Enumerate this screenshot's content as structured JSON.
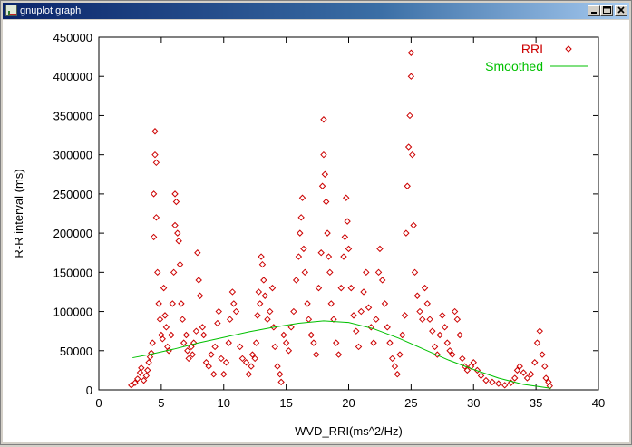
{
  "window": {
    "title": "gnuplot graph",
    "controls": {
      "minimize": "minimize",
      "maximize": "maximize",
      "close": "close"
    }
  },
  "chart_data": {
    "type": "scatter",
    "xlabel": "WVD_RRI(ms^2/Hz)",
    "ylabel": "R-R interval (ms)",
    "xlim": [
      0,
      40
    ],
    "ylim": [
      0,
      450000
    ],
    "xticks": [
      "0",
      "5",
      "10",
      "15",
      "20",
      "25",
      "30",
      "35",
      "40"
    ],
    "yticks": [
      "0",
      "50000",
      "100000",
      "150000",
      "200000",
      "250000",
      "300000",
      "350000",
      "400000",
      "450000"
    ],
    "legend_position": "top-right",
    "series": [
      {
        "name": "RRI",
        "marker": "diamond",
        "color": "#cc0000",
        "points": [
          [
            2.6,
            6000
          ],
          [
            2.9,
            9000
          ],
          [
            3.1,
            14000
          ],
          [
            3.3,
            22000
          ],
          [
            3.4,
            28000
          ],
          [
            3.6,
            12000
          ],
          [
            3.8,
            18000
          ],
          [
            3.9,
            25000
          ],
          [
            4.0,
            35000
          ],
          [
            4.1,
            42000
          ],
          [
            4.2,
            47000
          ],
          [
            4.3,
            60000
          ],
          [
            4.4,
            195000
          ],
          [
            4.4,
            250000
          ],
          [
            4.5,
            300000
          ],
          [
            4.5,
            330000
          ],
          [
            4.6,
            290000
          ],
          [
            4.6,
            220000
          ],
          [
            4.7,
            150000
          ],
          [
            4.8,
            110000
          ],
          [
            4.9,
            90000
          ],
          [
            5.0,
            70000
          ],
          [
            5.1,
            65000
          ],
          [
            5.2,
            130000
          ],
          [
            5.3,
            95000
          ],
          [
            5.4,
            80000
          ],
          [
            5.5,
            55000
          ],
          [
            5.6,
            50000
          ],
          [
            5.8,
            70000
          ],
          [
            5.9,
            110000
          ],
          [
            6.0,
            150000
          ],
          [
            6.1,
            210000
          ],
          [
            6.1,
            250000
          ],
          [
            6.2,
            240000
          ],
          [
            6.3,
            200000
          ],
          [
            6.4,
            190000
          ],
          [
            6.5,
            160000
          ],
          [
            6.6,
            110000
          ],
          [
            6.7,
            90000
          ],
          [
            6.8,
            60000
          ],
          [
            7.0,
            70000
          ],
          [
            7.1,
            50000
          ],
          [
            7.2,
            40000
          ],
          [
            7.4,
            55000
          ],
          [
            7.5,
            45000
          ],
          [
            7.6,
            60000
          ],
          [
            7.8,
            75000
          ],
          [
            7.9,
            175000
          ],
          [
            8.0,
            140000
          ],
          [
            8.1,
            120000
          ],
          [
            8.3,
            80000
          ],
          [
            8.4,
            70000
          ],
          [
            8.6,
            35000
          ],
          [
            8.8,
            30000
          ],
          [
            9.0,
            45000
          ],
          [
            9.2,
            20000
          ],
          [
            9.3,
            55000
          ],
          [
            9.5,
            85000
          ],
          [
            9.6,
            100000
          ],
          [
            9.8,
            40000
          ],
          [
            10.0,
            20000
          ],
          [
            10.2,
            35000
          ],
          [
            10.4,
            60000
          ],
          [
            10.5,
            90000
          ],
          [
            10.7,
            125000
          ],
          [
            10.8,
            110000
          ],
          [
            11.0,
            100000
          ],
          [
            11.3,
            55000
          ],
          [
            11.5,
            40000
          ],
          [
            11.8,
            35000
          ],
          [
            12.0,
            20000
          ],
          [
            12.2,
            30000
          ],
          [
            12.3,
            45000
          ],
          [
            12.5,
            40000
          ],
          [
            12.6,
            60000
          ],
          [
            12.7,
            95000
          ],
          [
            12.8,
            125000
          ],
          [
            12.9,
            110000
          ],
          [
            13.0,
            170000
          ],
          [
            13.1,
            160000
          ],
          [
            13.2,
            140000
          ],
          [
            13.3,
            120000
          ],
          [
            13.5,
            90000
          ],
          [
            13.7,
            100000
          ],
          [
            13.9,
            130000
          ],
          [
            14.0,
            80000
          ],
          [
            14.1,
            55000
          ],
          [
            14.3,
            30000
          ],
          [
            14.5,
            20000
          ],
          [
            14.6,
            10000
          ],
          [
            14.8,
            70000
          ],
          [
            15.0,
            60000
          ],
          [
            15.2,
            50000
          ],
          [
            15.4,
            80000
          ],
          [
            15.6,
            100000
          ],
          [
            15.8,
            140000
          ],
          [
            16.0,
            170000
          ],
          [
            16.1,
            200000
          ],
          [
            16.2,
            220000
          ],
          [
            16.3,
            245000
          ],
          [
            16.4,
            180000
          ],
          [
            16.5,
            150000
          ],
          [
            16.7,
            110000
          ],
          [
            16.8,
            90000
          ],
          [
            17.0,
            70000
          ],
          [
            17.2,
            60000
          ],
          [
            17.4,
            45000
          ],
          [
            17.6,
            130000
          ],
          [
            17.8,
            175000
          ],
          [
            17.9,
            260000
          ],
          [
            18.0,
            300000
          ],
          [
            18.0,
            345000
          ],
          [
            18.1,
            275000
          ],
          [
            18.2,
            240000
          ],
          [
            18.3,
            200000
          ],
          [
            18.4,
            170000
          ],
          [
            18.5,
            150000
          ],
          [
            18.6,
            110000
          ],
          [
            18.8,
            90000
          ],
          [
            19.0,
            60000
          ],
          [
            19.2,
            45000
          ],
          [
            19.4,
            130000
          ],
          [
            19.6,
            170000
          ],
          [
            19.7,
            195000
          ],
          [
            19.8,
            245000
          ],
          [
            19.9,
            215000
          ],
          [
            20.0,
            180000
          ],
          [
            20.2,
            130000
          ],
          [
            20.4,
            95000
          ],
          [
            20.6,
            75000
          ],
          [
            20.8,
            55000
          ],
          [
            21.0,
            100000
          ],
          [
            21.2,
            125000
          ],
          [
            21.4,
            150000
          ],
          [
            21.6,
            105000
          ],
          [
            21.8,
            80000
          ],
          [
            22.0,
            60000
          ],
          [
            22.2,
            90000
          ],
          [
            22.4,
            150000
          ],
          [
            22.5,
            180000
          ],
          [
            22.7,
            140000
          ],
          [
            22.9,
            110000
          ],
          [
            23.1,
            80000
          ],
          [
            23.3,
            60000
          ],
          [
            23.5,
            40000
          ],
          [
            23.7,
            30000
          ],
          [
            23.9,
            20000
          ],
          [
            24.1,
            45000
          ],
          [
            24.3,
            70000
          ],
          [
            24.5,
            95000
          ],
          [
            24.6,
            200000
          ],
          [
            24.7,
            260000
          ],
          [
            24.8,
            310000
          ],
          [
            24.9,
            350000
          ],
          [
            25.0,
            400000
          ],
          [
            25.0,
            430000
          ],
          [
            25.1,
            300000
          ],
          [
            25.2,
            210000
          ],
          [
            25.3,
            150000
          ],
          [
            25.5,
            120000
          ],
          [
            25.7,
            100000
          ],
          [
            25.9,
            90000
          ],
          [
            26.1,
            130000
          ],
          [
            26.3,
            110000
          ],
          [
            26.5,
            90000
          ],
          [
            26.7,
            75000
          ],
          [
            26.9,
            55000
          ],
          [
            27.1,
            45000
          ],
          [
            27.3,
            70000
          ],
          [
            27.5,
            95000
          ],
          [
            27.7,
            80000
          ],
          [
            27.9,
            60000
          ],
          [
            28.1,
            50000
          ],
          [
            28.3,
            45000
          ],
          [
            28.5,
            100000
          ],
          [
            28.7,
            90000
          ],
          [
            28.9,
            70000
          ],
          [
            29.1,
            40000
          ],
          [
            29.3,
            30000
          ],
          [
            29.5,
            25000
          ],
          [
            29.8,
            30000
          ],
          [
            30.0,
            35000
          ],
          [
            30.3,
            25000
          ],
          [
            30.6,
            18000
          ],
          [
            31.0,
            12000
          ],
          [
            31.5,
            10000
          ],
          [
            32.0,
            8000
          ],
          [
            32.5,
            6000
          ],
          [
            33.0,
            9000
          ],
          [
            33.3,
            15000
          ],
          [
            33.5,
            25000
          ],
          [
            33.7,
            30000
          ],
          [
            34.0,
            22000
          ],
          [
            34.3,
            15000
          ],
          [
            34.6,
            20000
          ],
          [
            34.9,
            35000
          ],
          [
            35.1,
            60000
          ],
          [
            35.3,
            75000
          ],
          [
            35.5,
            45000
          ],
          [
            35.7,
            30000
          ],
          [
            35.8,
            15000
          ],
          [
            36.0,
            10000
          ],
          [
            36.1,
            5000
          ]
        ]
      },
      {
        "name": "Smoothed",
        "color": "#00c000",
        "points": [
          [
            2.7,
            41000
          ],
          [
            4,
            45000
          ],
          [
            6,
            52000
          ],
          [
            8,
            60000
          ],
          [
            10,
            67000
          ],
          [
            12,
            74000
          ],
          [
            14,
            80000
          ],
          [
            16,
            85000
          ],
          [
            18,
            88000
          ],
          [
            20,
            86000
          ],
          [
            22,
            78000
          ],
          [
            24,
            66000
          ],
          [
            26,
            52000
          ],
          [
            28,
            38000
          ],
          [
            30,
            26000
          ],
          [
            32,
            15000
          ],
          [
            34,
            7000
          ],
          [
            36.2,
            2000
          ]
        ]
      }
    ]
  }
}
